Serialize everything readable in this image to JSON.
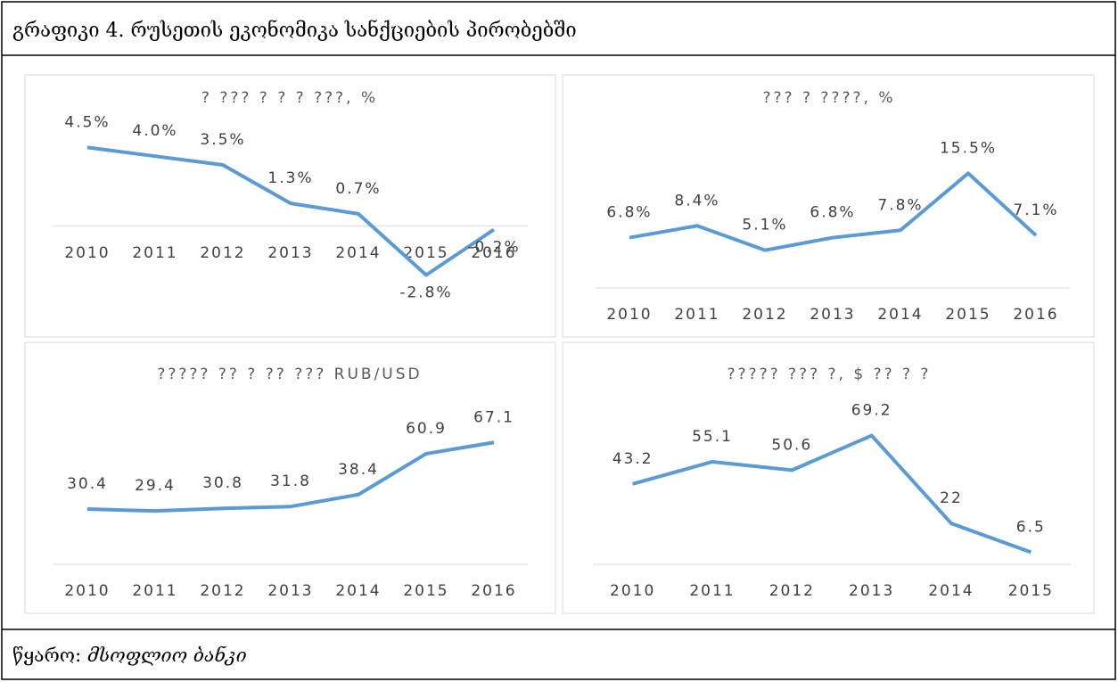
{
  "header": {
    "title": "გრაფიკი 4. რუსეთის ეკონომიკა სანქციების პირობებში"
  },
  "chart_data": [
    {
      "type": "line",
      "title": "? ??? ? ? ? ???, %",
      "categories": [
        "2010",
        "2011",
        "2012",
        "2013",
        "2014",
        "2015",
        "2016"
      ],
      "values": [
        4.5,
        4.0,
        3.5,
        1.3,
        0.7,
        -2.8,
        -0.2
      ],
      "value_labels": [
        "4.5%",
        "4.0%",
        "3.5%",
        "1.3%",
        "0.7%",
        "-2.8%",
        "-0.2%"
      ],
      "color": "#5b9bd5",
      "ylim": [
        -4,
        6
      ]
    },
    {
      "type": "line",
      "title": "??? ? ????, %",
      "categories": [
        "2010",
        "2011",
        "2012",
        "2013",
        "2014",
        "2015",
        "2016"
      ],
      "values": [
        6.8,
        8.4,
        5.1,
        6.8,
        7.8,
        15.5,
        7.1
      ],
      "value_labels": [
        "6.8%",
        "8.4%",
        "5.1%",
        "6.8%",
        "7.8%",
        "15.5%",
        "7.1%"
      ],
      "color": "#5b9bd5",
      "ylim": [
        0,
        20
      ]
    },
    {
      "type": "line",
      "title": "????? ?? ? ?? ??? RUB/USD",
      "categories": [
        "2010",
        "2011",
        "2012",
        "2013",
        "2014",
        "2015",
        "2016"
      ],
      "values": [
        30.4,
        29.4,
        30.8,
        31.8,
        38.4,
        60.9,
        67.1
      ],
      "color": "#5b9bd5",
      "ylim": [
        0,
        80
      ]
    },
    {
      "type": "line",
      "title": "????? ??? ?, $ ?? ? ?",
      "categories": [
        "2010",
        "2011",
        "2012",
        "2013",
        "2014",
        "2015"
      ],
      "values": [
        43.2,
        55.1,
        50.6,
        69.2,
        22,
        6.5
      ],
      "color": "#5b9bd5",
      "ylim": [
        0,
        80
      ]
    }
  ],
  "footer": {
    "label": "წყარო:",
    "source": "მსოფლიო ბანკი"
  }
}
